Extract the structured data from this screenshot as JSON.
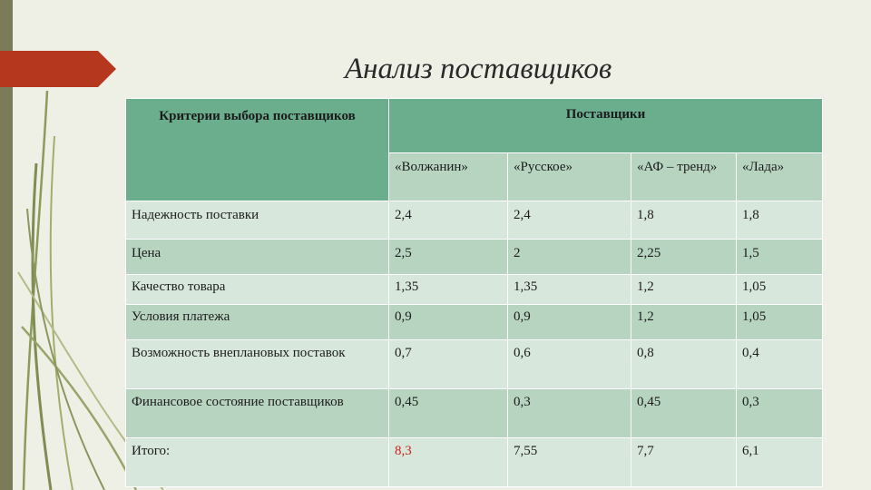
{
  "slide": {
    "title": "Анализ поставщиков"
  },
  "table": {
    "criteria_header": "Критерии выбора поставщиков",
    "suppliers_header": "Поставщики",
    "suppliers": [
      "«Волжанин»",
      "«Русское»",
      "«АФ – тренд»",
      "«Лада»"
    ],
    "rows": [
      {
        "label": "Надежность поставки",
        "values": [
          "2,4",
          "2,4",
          "1,8",
          "1,8"
        ]
      },
      {
        "label": "Цена",
        "values": [
          "2,5",
          "2",
          "2,25",
          "1,5"
        ]
      },
      {
        "label": "Качество товара",
        "values": [
          "1,35",
          "1,35",
          "1,2",
          "1,05"
        ]
      },
      {
        "label": "Условия платежа",
        "values": [
          "0,9",
          "0,9",
          "1,2",
          "1,05"
        ]
      },
      {
        "label": "Возможность внеплановых поставок",
        "values": [
          "0,7",
          "0,6",
          "0,8",
          "0,4"
        ]
      },
      {
        "label": "Финансовое состояние поставщиков",
        "values": [
          "0,45",
          "0,3",
          "0,45",
          "0,3"
        ]
      },
      {
        "label": "Итого:",
        "values": [
          "8,3",
          "7,55",
          "7,7",
          "6,1"
        ]
      }
    ]
  },
  "colors": {
    "header_bg": "#6aae8e",
    "row_dark": "#b7d4c1",
    "row_light": "#d8e7dc",
    "accent": "#b5371e",
    "highlight_total": "#cc1f1f"
  }
}
